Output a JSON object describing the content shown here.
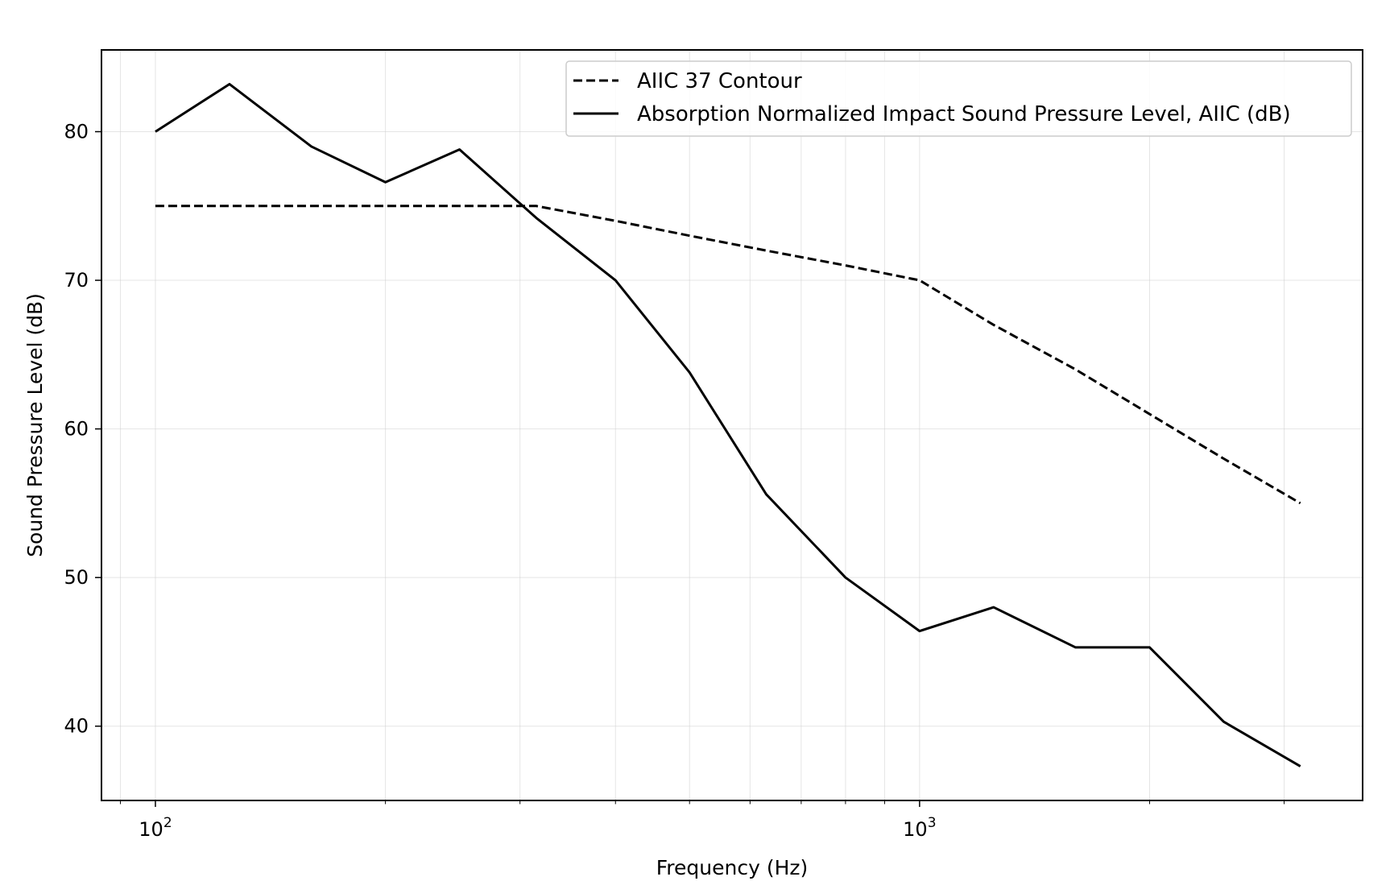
{
  "chart_data": {
    "type": "line",
    "title": "",
    "xlabel": "Frequency (Hz)",
    "ylabel": "Sound Pressure Level (dB)",
    "xscale": "log",
    "xlim": [
      85,
      3800
    ],
    "ylim": [
      35,
      85.5
    ],
    "grid": true,
    "legend_position": "top-right",
    "x_ticks": [
      {
        "value": 100,
        "base": "10",
        "exp": "2"
      },
      {
        "value": 1000,
        "base": "10",
        "exp": "3"
      }
    ],
    "y_ticks": [
      {
        "value": 40,
        "label": "40"
      },
      {
        "value": 50,
        "label": "50"
      },
      {
        "value": 60,
        "label": "60"
      },
      {
        "value": 70,
        "label": "70"
      },
      {
        "value": 80,
        "label": "80"
      }
    ],
    "x": [
      100,
      125,
      160,
      200,
      250,
      315,
      400,
      500,
      630,
      800,
      1000,
      1250,
      1600,
      2000,
      2500,
      3150
    ],
    "series": [
      {
        "name": "AIIC 37 Contour",
        "style": "dashed",
        "color": "#000000",
        "values": [
          75,
          75,
          75,
          75,
          75,
          75,
          74,
          73,
          72,
          71,
          70,
          67,
          64,
          61,
          58,
          55
        ]
      },
      {
        "name": "Absorption Normalized Impact Sound Pressure Level, AIIC (dB)",
        "style": "solid",
        "color": "#000000",
        "values": [
          80,
          83.2,
          79,
          76.6,
          78.8,
          74.2,
          70,
          63.8,
          55.6,
          50,
          46.4,
          48,
          45.3,
          45.3,
          40.3,
          37.3
        ]
      }
    ]
  }
}
